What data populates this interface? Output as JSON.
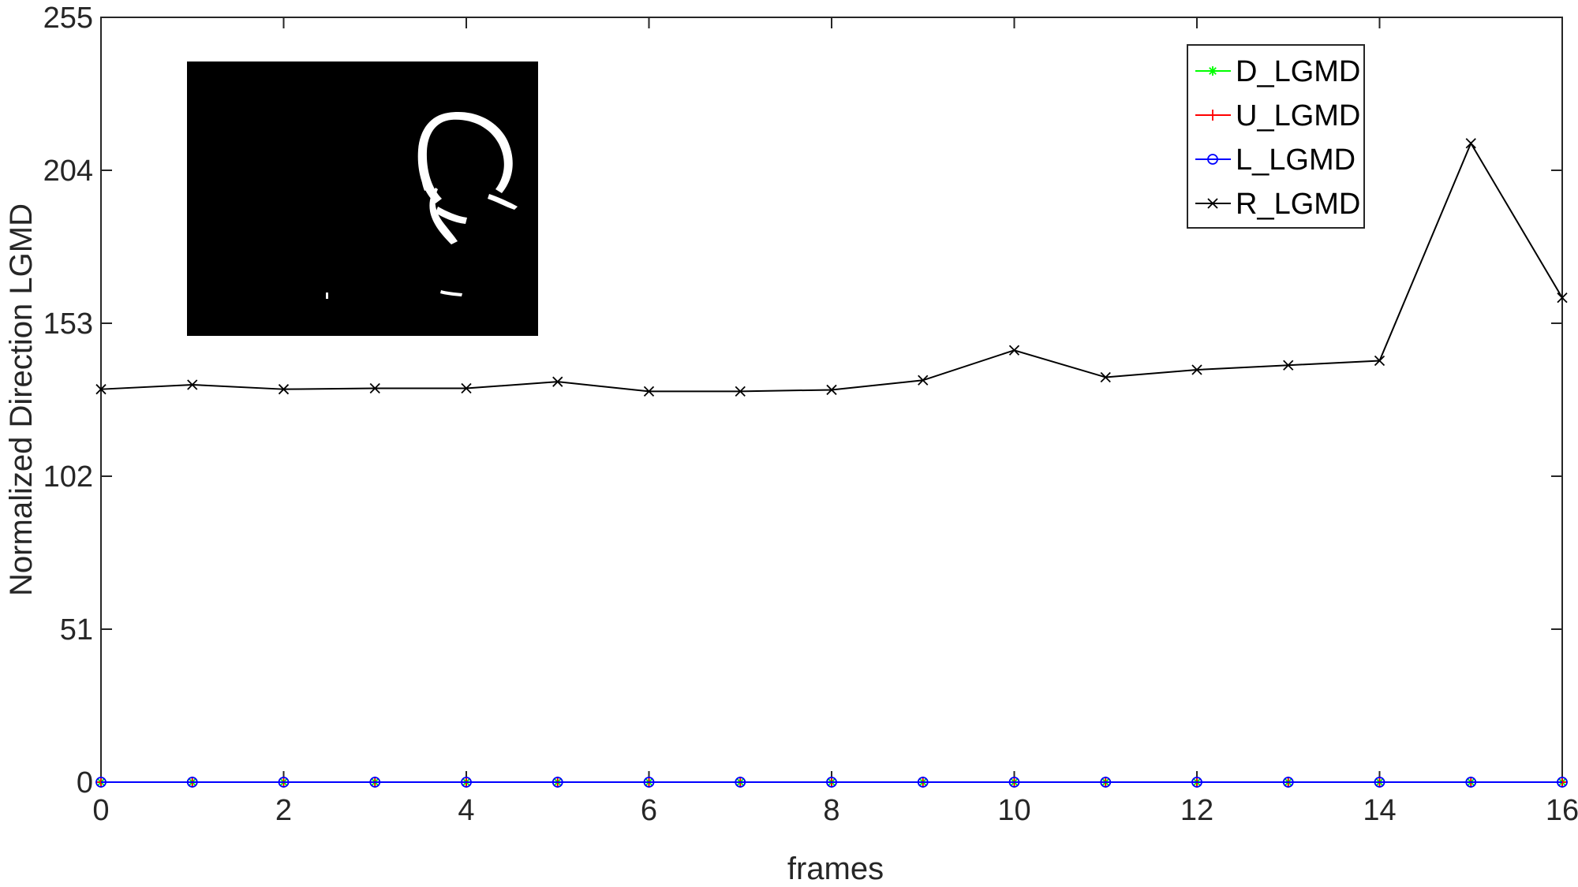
{
  "chart_data": {
    "type": "line",
    "xlabel": "frames",
    "ylabel": "Normalized Direction LGMD",
    "xlim": [
      0,
      16
    ],
    "ylim": [
      0,
      255
    ],
    "xticks": [
      0,
      2,
      4,
      6,
      8,
      10,
      12,
      14,
      16
    ],
    "yticks": [
      0,
      51,
      102,
      153,
      204,
      255
    ],
    "grid": false,
    "legend_position": "top-right",
    "x": [
      0,
      1,
      2,
      3,
      4,
      5,
      6,
      7,
      8,
      9,
      10,
      11,
      12,
      13,
      14,
      15,
      16
    ],
    "series": [
      {
        "name": "D_LGMD",
        "color": "#00ff00",
        "marker": "*",
        "values": [
          0,
          0,
          0,
          0,
          0,
          0,
          0,
          0,
          0,
          0,
          0,
          0,
          0,
          0,
          0,
          0,
          0
        ]
      },
      {
        "name": "U_LGMD",
        "color": "#ff0000",
        "marker": "+",
        "values": [
          0,
          0,
          0,
          0,
          0,
          0,
          0,
          0,
          0,
          0,
          0,
          0,
          0,
          0,
          0,
          0,
          0
        ]
      },
      {
        "name": "L_LGMD",
        "color": "#0000ff",
        "marker": "o",
        "values": [
          0,
          0,
          0,
          0,
          0,
          0,
          0,
          0,
          0,
          0,
          0,
          0,
          0,
          0,
          0,
          0,
          0
        ]
      },
      {
        "name": "R_LGMD",
        "color": "#000000",
        "marker": "x",
        "values": [
          131,
          132.5,
          131,
          131.3,
          131.3,
          133.5,
          130.3,
          130.3,
          130.8,
          134,
          144,
          135,
          137.5,
          139,
          140.5,
          213,
          161.5
        ]
      }
    ],
    "inset_image": "binary-frame-thumbnail"
  }
}
